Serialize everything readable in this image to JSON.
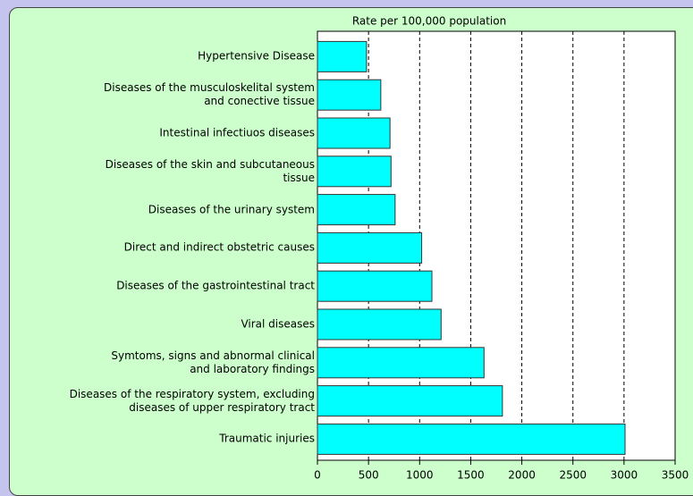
{
  "chart_data": {
    "type": "hbar",
    "title": "Rate per 100,000 population",
    "categories": [
      "Hypertensive Disease",
      "Diseases of the musculoskelital system\nand conective tissue",
      "Intestinal infectiuos diseases",
      "Diseases of the skin and subcutaneous\ntissue",
      "Diseases of the urinary system",
      "Direct and indirect obstetric causes",
      "Diseases of the gastrointestinal tract",
      "Viral diseases",
      "Symtoms, signs and abnormal clinical\nand laboratory findings",
      "Diseases of the respiratory system, excluding\ndiseases of upper respiratory tract",
      "Traumatic injuries"
    ],
    "values": [
      480,
      620,
      710,
      720,
      760,
      1020,
      1120,
      1210,
      1630,
      1810,
      3010
    ],
    "color": "#00ffff",
    "xlim": [
      0,
      3500
    ],
    "xticks": [
      0,
      500,
      1000,
      1500,
      2000,
      2500,
      3000,
      3500
    ],
    "grid": true
  }
}
